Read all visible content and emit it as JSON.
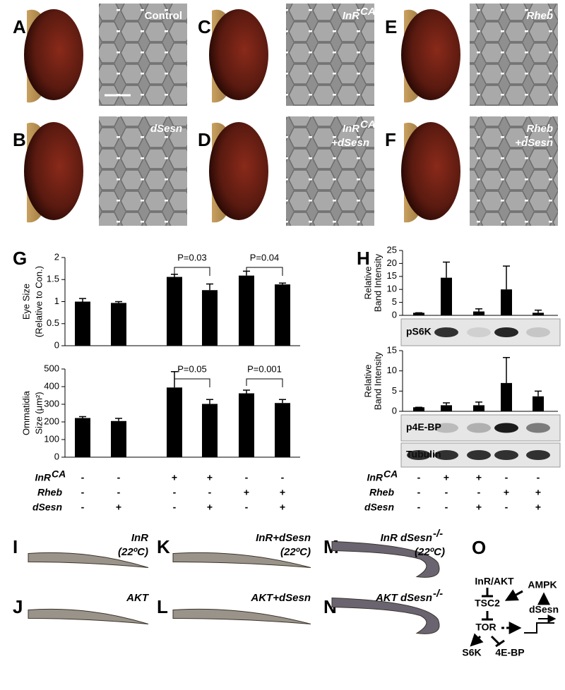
{
  "eyes": [
    {
      "letter": "A",
      "caption": "Control"
    },
    {
      "letter": "B",
      "caption": "dSesn"
    },
    {
      "letter": "C",
      "caption": "InR",
      "sup": "CA"
    },
    {
      "letter": "D",
      "caption": "InR",
      "sup": "CA",
      "caption2": "+dSesn"
    },
    {
      "letter": "E",
      "caption": "Rheb"
    },
    {
      "letter": "F",
      "caption": "Rheb",
      "caption2": "+dSesn"
    }
  ],
  "chart_letters": [
    "G",
    "H"
  ],
  "chart_data": [
    {
      "type": "bar",
      "ylabel": [
        "Eye Size",
        "(Relative to Con.)"
      ],
      "ylim": [
        0,
        2
      ],
      "yticks": [
        0,
        0.5,
        1,
        1.5,
        2
      ],
      "values": [
        1.0,
        0.97,
        1.56,
        1.26,
        1.59,
        1.39
      ],
      "errors": [
        0.07,
        0.03,
        0.06,
        0.14,
        0.1,
        0.03
      ],
      "color": "#000000",
      "brackets": [
        "P=0.03",
        "P=0.04"
      ]
    },
    {
      "type": "bar",
      "ylabel": [
        "Ommatidia",
        "Size (μm²)"
      ],
      "ylim": [
        0,
        500
      ],
      "yticks": [
        0,
        100,
        200,
        300,
        400,
        500
      ],
      "values": [
        222,
        205,
        395,
        302,
        362,
        307
      ],
      "errors": [
        8,
        15,
        90,
        25,
        18,
        20
      ],
      "color": "#000000",
      "brackets": [
        "P=0.05",
        "P=0.001"
      ]
    },
    {
      "type": "bar",
      "ylabel": [
        "Relative",
        "Band Intensity"
      ],
      "ylim": [
        0,
        25
      ],
      "yticks": [
        0,
        5,
        10,
        15,
        20,
        25
      ],
      "values": [
        1,
        14.5,
        1.5,
        10,
        1
      ],
      "errors": [
        0,
        6,
        1,
        9,
        1
      ],
      "color": "#000000"
    },
    {
      "type": "bar",
      "ylabel": [
        "Relative",
        "Band Intensity"
      ],
      "ylim": [
        0,
        15
      ],
      "yticks": [
        0,
        5,
        10,
        15
      ],
      "values": [
        1,
        1.5,
        1.5,
        7,
        3.7
      ],
      "errors": [
        0,
        0.6,
        0.8,
        6.3,
        1.3
      ],
      "color": "#000000"
    }
  ],
  "blots": [
    "pS6K",
    "p4E-BP",
    "Tubulin"
  ],
  "genotypes_G": [
    {
      "name": "InR",
      "sup": "CA",
      "signs": [
        "-",
        "-",
        "+",
        "+",
        "-",
        "-"
      ]
    },
    {
      "name": "Rheb",
      "signs": [
        "-",
        "-",
        "-",
        "-",
        "+",
        "+"
      ]
    },
    {
      "name": "dSesn",
      "signs": [
        "-",
        "+",
        "-",
        "+",
        "-",
        "+"
      ]
    }
  ],
  "genotypes_H": [
    {
      "name": "InR",
      "sup": "CA",
      "signs": [
        "-",
        "+",
        "+",
        "-",
        "-"
      ]
    },
    {
      "name": "Rheb",
      "signs": [
        "-",
        "-",
        "-",
        "+",
        "+"
      ]
    },
    {
      "name": "dSesn",
      "signs": [
        "-",
        "-",
        "+",
        "-",
        "+"
      ]
    }
  ],
  "wings": [
    {
      "letter": "I",
      "caption": "InR",
      "caption2": "(22ºC)"
    },
    {
      "letter": "J",
      "caption": "AKT"
    },
    {
      "letter": "K",
      "caption": "InR+dSesn",
      "caption2": "(22ºC)"
    },
    {
      "letter": "L",
      "caption": "AKT+dSesn"
    },
    {
      "letter": "M",
      "caption": "InR dSesn",
      "sup": "-/-",
      "caption2": "(22ºC)"
    },
    {
      "letter": "N",
      "caption": "AKT dSesn",
      "sup": "-/-"
    }
  ],
  "diagram": {
    "letter": "O",
    "nodes": [
      "InR/AKT",
      "AMPK",
      "TSC2",
      "dSesn",
      "TOR",
      "S6K",
      "4E-BP"
    ]
  }
}
